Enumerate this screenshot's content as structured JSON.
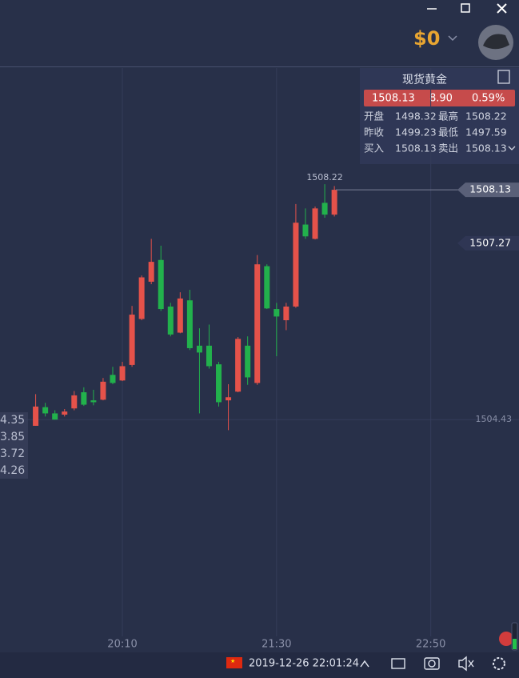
{
  "header": {
    "balance": "$0"
  },
  "quote": {
    "name": "现货黄金",
    "price": "1508.13",
    "change": "8.90",
    "change_pct": "0.59%",
    "rows": [
      [
        "开盘",
        "1498.32",
        "最高",
        "1508.22"
      ],
      [
        "昨收",
        "1499.23",
        "最低",
        "1497.59"
      ],
      [
        "买入",
        "1508.13",
        "卖出",
        "1508.13"
      ]
    ]
  },
  "left_panel": [
    "4.35",
    "3.85",
    "3.72",
    "4.26"
  ],
  "footer": {
    "datetime": "2019-12-26 22:01:24"
  },
  "chart_data": {
    "type": "candlestick",
    "x": [
      1165,
      1170,
      1175,
      1180,
      1185,
      1190,
      1195,
      1200,
      1205,
      1210,
      1215,
      1220,
      1225,
      1230,
      1235,
      1240,
      1245,
      1250,
      1255,
      1260,
      1265,
      1270,
      1275,
      1280,
      1285,
      1290,
      1295,
      1300,
      1305,
      1310,
      1315,
      1320
    ],
    "open": [
      1504.33,
      1504.63,
      1504.53,
      1504.51,
      1504.61,
      1504.87,
      1504.74,
      1504.75,
      1505.15,
      1505.06,
      1505.31,
      1506.05,
      1506.65,
      1507.0,
      1506.25,
      1505.83,
      1506.35,
      1505.62,
      1505.62,
      1505.32,
      1504.74,
      1504.88,
      1505.62,
      1505.02,
      1506.9,
      1506.21,
      1506.03,
      1506.25,
      1507.57,
      1507.34,
      1507.92,
      1507.73
    ],
    "high": [
      1504.84,
      1504.7,
      1504.58,
      1504.6,
      1504.89,
      1504.95,
      1504.91,
      1505.1,
      1505.28,
      1505.36,
      1506.26,
      1506.75,
      1507.34,
      1507.23,
      1506.31,
      1506.48,
      1506.52,
      1505.9,
      1505.96,
      1505.36,
      1505.0,
      1505.76,
      1505.77,
      1507.08,
      1506.93,
      1506.31,
      1506.31,
      1507.9,
      1507.83,
      1507.86,
      1508.22,
      1508.19
    ],
    "low": [
      1504.33,
      1504.48,
      1504.43,
      1504.48,
      1504.58,
      1504.65,
      1504.66,
      1504.74,
      1505.0,
      1505.05,
      1505.28,
      1506.03,
      1506.61,
      1506.18,
      1505.77,
      1505.82,
      1505.55,
      1504.53,
      1505.25,
      1504.64,
      1504.26,
      1504.87,
      1504.99,
      1504.99,
      1506.21,
      1505.45,
      1505.87,
      1506.23,
      1507.34,
      1507.33,
      1507.68,
      1507.7
    ],
    "close": [
      1504.64,
      1504.53,
      1504.43,
      1504.56,
      1504.82,
      1504.67,
      1504.71,
      1505.04,
      1505.02,
      1505.29,
      1506.12,
      1506.72,
      1506.97,
      1506.21,
      1505.8,
      1506.38,
      1505.58,
      1505.51,
      1505.29,
      1504.71,
      1504.79,
      1505.73,
      1505.11,
      1506.93,
      1506.22,
      1506.09,
      1506.25,
      1507.6,
      1507.38,
      1507.83,
      1507.73,
      1508.13
    ],
    "up_color": "#e5524a",
    "down_color": "#22b14c",
    "xlim": [
      1146.5,
      1415.8
    ],
    "ylim": [
      1500.94,
      1510.09
    ],
    "xticks": [
      {
        "value": 1210,
        "label": "20:10"
      },
      {
        "value": 1290,
        "label": "21:30"
      },
      {
        "value": 1370,
        "label": "22:50"
      }
    ],
    "yticks": [
      1504.43
    ],
    "high_label": 1508.22,
    "price_markers": [
      1508.13,
      1507.27
    ],
    "grid": true
  }
}
